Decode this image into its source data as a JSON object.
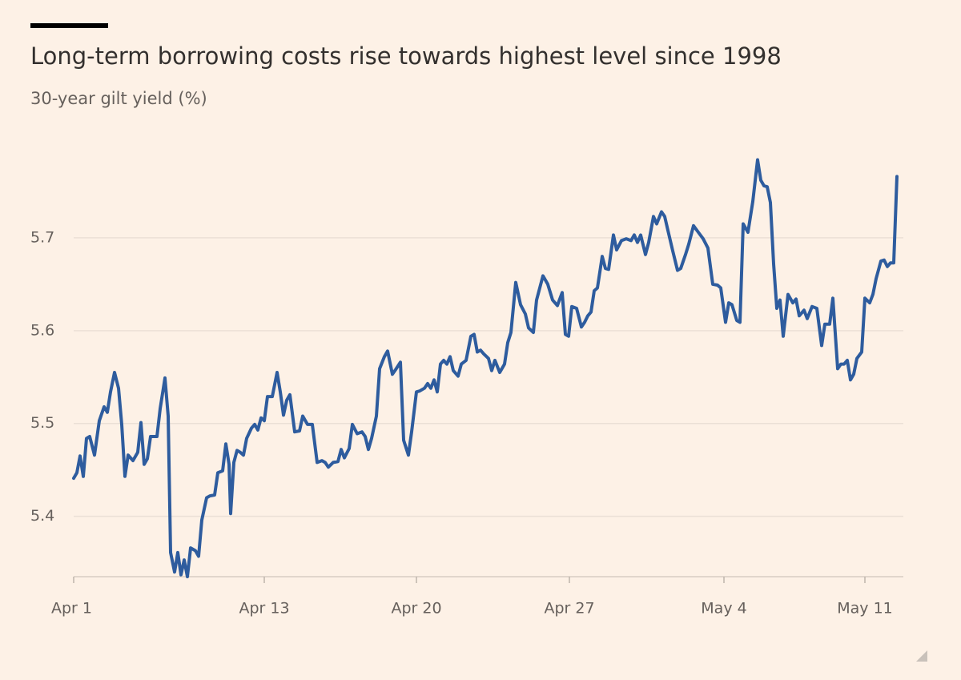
{
  "chart_data": {
    "type": "line",
    "title": "Long-term borrowing costs rise towards highest level since 1998",
    "subtitle": "30-year gilt yield (%)",
    "color": "#2e5c9e",
    "grid": true,
    "x": [
      0,
      0.4,
      0.8,
      1.2,
      1.6,
      2,
      2.6,
      3.2,
      3.8,
      4.2,
      4.6,
      5.1,
      5.6,
      6,
      6.4,
      6.8,
      7.4,
      8,
      8.4,
      8.8,
      9.2,
      9.6,
      10.4,
      10.8,
      11.4,
      11.8,
      12.1,
      12.6,
      13,
      13.4,
      13.8,
      14.2,
      14.6,
      15.2,
      15.6,
      16,
      16.6,
      17,
      17.6,
      18,
      18.6,
      19,
      19.4,
      19.6,
      20,
      20.4,
      20.8,
      21.2,
      21.6,
      22.2,
      22.6,
      23,
      23.4,
      23.8,
      24.2,
      24.8,
      25.4,
      25.8,
      26.2,
      26.6,
      27,
      27.6,
      28.2,
      28.6,
      29.2,
      29.8,
      30.4,
      31,
      31.4,
      31.8,
      32.4,
      33,
      33.4,
      33.8,
      34.4,
      34.8,
      35.4,
      36,
      36.4,
      36.8,
      37.2,
      37.8,
      38.2,
      38.8,
      39.2,
      39.8,
      40.2,
      40.8,
      41.2,
      41.8,
      42.2,
      42.8,
      43.2,
      43.8,
      44.2,
      44.6,
      45,
      45.4,
      45.8,
      46.2,
      46.6,
      47,
      47.4,
      48,
      48.4,
      49,
      49.6,
      50,
      50.4,
      50.8,
      51.2,
      51.8,
      52.2,
      52.6,
      53.2,
      53.8,
      54.2,
      54.6,
      55.2,
      55.8,
      56.4,
      56.8,
      57.4,
      57.8,
      58.6,
      59.2,
      59.8,
      60.4,
      61,
      61.4,
      61.8,
      62.2,
      62.8,
      63.4,
      63.8,
      64.2,
      64.6,
      65,
      65.4,
      66,
      66.4,
      66.8,
      67.4,
      67.8,
      68.4,
      69,
      69.6,
      70,
      70.4,
      70.8,
      71.4,
      71.8,
      72.4,
      72.8,
      73.4,
      73.8,
      74.2,
      74.8,
      75.4,
      75.8,
      76.4,
      76.8,
      77.4,
      78,
      78.6,
      79.2,
      79.8,
      80.4,
      80.8,
      81.4,
      81.8,
      82.2,
      82.8,
      83.2,
      83.6,
      84.2,
      84.8,
      85.4,
      85.8,
      86.2,
      86.6,
      87,
      87.4,
      87.8,
      88.2,
      88.6,
      89.2,
      89.8,
      90.2,
      90.6,
      91.2,
      91.6,
      92.2,
      92.8,
      93.4,
      93.8,
      94.4,
      94.8,
      95.4,
      95.8,
      96.2,
      96.6,
      97,
      97.4,
      97.8,
      98.4,
      98.8,
      99.4,
      99.8,
      100.2,
      100.8,
      101.2,
      101.6,
      102,
      102.4,
      102.8
    ],
    "values": [
      5.441,
      5.447,
      5.465,
      5.443,
      5.484,
      5.486,
      5.466,
      5.503,
      5.518,
      5.512,
      5.534,
      5.555,
      5.538,
      5.499,
      5.443,
      5.466,
      5.46,
      5.469,
      5.501,
      5.456,
      5.462,
      5.486,
      5.486,
      5.516,
      5.549,
      5.508,
      5.361,
      5.34,
      5.361,
      5.337,
      5.353,
      5.335,
      5.366,
      5.363,
      5.357,
      5.396,
      5.42,
      5.422,
      5.423,
      5.447,
      5.449,
      5.478,
      5.456,
      5.403,
      5.458,
      5.471,
      5.469,
      5.466,
      5.484,
      5.495,
      5.499,
      5.493,
      5.506,
      5.503,
      5.529,
      5.529,
      5.555,
      5.534,
      5.509,
      5.525,
      5.531,
      5.491,
      5.492,
      5.508,
      5.499,
      5.499,
      5.458,
      5.46,
      5.458,
      5.453,
      5.458,
      5.459,
      5.472,
      5.463,
      5.473,
      5.499,
      5.489,
      5.491,
      5.486,
      5.472,
      5.484,
      5.508,
      5.559,
      5.572,
      5.578,
      5.553,
      5.558,
      5.566,
      5.482,
      5.466,
      5.491,
      5.534,
      5.535,
      5.538,
      5.543,
      5.538,
      5.547,
      5.534,
      5.564,
      5.568,
      5.564,
      5.572,
      5.557,
      5.551,
      5.564,
      5.568,
      5.594,
      5.596,
      5.577,
      5.579,
      5.575,
      5.57,
      5.557,
      5.568,
      5.555,
      5.564,
      5.587,
      5.598,
      5.652,
      5.628,
      5.618,
      5.603,
      5.598,
      5.633,
      5.659,
      5.65,
      5.633,
      5.627,
      5.641,
      5.596,
      5.594,
      5.626,
      5.624,
      5.604,
      5.609,
      5.616,
      5.62,
      5.643,
      5.646,
      5.68,
      5.667,
      5.666,
      5.703,
      5.687,
      5.697,
      5.699,
      5.697,
      5.703,
      5.695,
      5.703,
      5.682,
      5.695,
      5.723,
      5.715,
      5.728,
      5.723,
      5.708,
      5.686,
      5.665,
      5.667,
      5.682,
      5.693,
      5.713,
      5.706,
      5.699,
      5.689,
      5.65,
      5.649,
      5.646,
      5.609,
      5.63,
      5.628,
      5.611,
      5.609,
      5.715,
      5.706,
      5.739,
      5.784,
      5.762,
      5.756,
      5.755,
      5.738,
      5.672,
      5.624,
      5.633,
      5.594,
      5.639,
      5.63,
      5.634,
      5.616,
      5.622,
      5.613,
      5.626,
      5.624,
      5.584,
      5.607,
      5.607,
      5.635,
      5.559,
      5.564,
      5.564,
      5.568,
      5.547,
      5.553,
      5.57,
      5.577,
      5.635,
      5.63,
      5.639,
      5.656,
      5.675,
      5.676,
      5.669,
      5.673,
      5.673,
      5.766
    ],
    "xlim": [
      0,
      103.6
    ],
    "xticks": [
      {
        "value": 0,
        "label": "Apr 1"
      },
      {
        "value": 23.8,
        "label": "Apr 13"
      },
      {
        "value": 42.8,
        "label": "Apr 20"
      },
      {
        "value": 61.9,
        "label": "Apr 27"
      },
      {
        "value": 81.2,
        "label": "May 4"
      },
      {
        "value": 98.8,
        "label": "May 11"
      }
    ],
    "ylim": [
      5.335,
      5.8
    ],
    "yticks": [
      5.4,
      5.5,
      5.6,
      5.7
    ]
  }
}
